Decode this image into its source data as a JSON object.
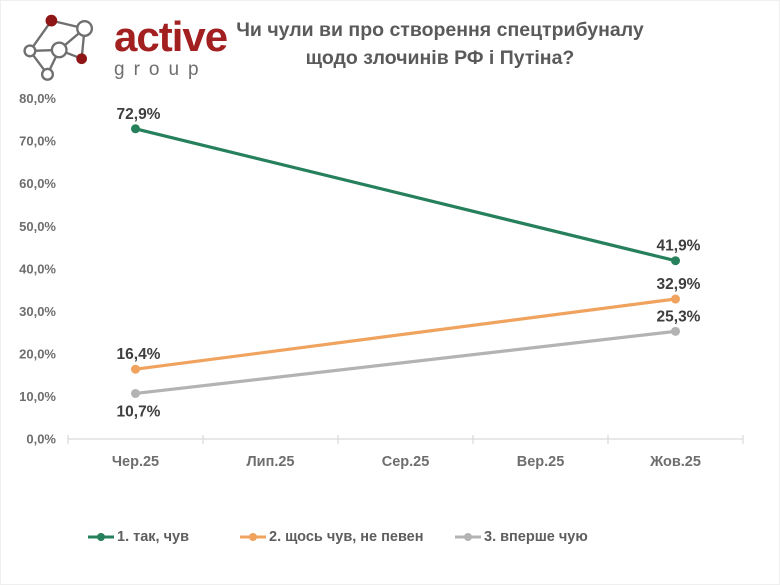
{
  "brand": {
    "primary": "active",
    "secondary": "group",
    "primary_color": "#a32021",
    "node_color": "#8f1616",
    "wire_color": "#6f6f6f"
  },
  "title": {
    "line1": "Чи чули ви про створення спецтрибуналу",
    "line2": "щодо злочинів РФ і Путіна?"
  },
  "chart_data": {
    "type": "line",
    "title": "Чи чули ви про створення спецтрибуналу щодо злочинів РФ і Путіна?",
    "categories": [
      "Чер.25",
      "Лип.25",
      "Сер.25",
      "Вер.25",
      "Жов.25"
    ],
    "y_axis": {
      "tick_values": [
        0,
        10,
        20,
        30,
        40,
        50,
        60,
        70,
        80
      ],
      "tick_labels": [
        "0,0%",
        "10,0%",
        "20,0%",
        "30,0%",
        "40,0%",
        "50,0%",
        "60,0%",
        "70,0%",
        "80,0%"
      ]
    },
    "ylim": [
      0,
      80
    ],
    "grid": false,
    "legend_position": "bottom",
    "axis_color": "#d9d9d9",
    "axis_text_color": "#6e6e6e",
    "data_label_color": "#3e3e3e",
    "series": [
      {
        "name": "1. так, чув",
        "color": "#26805c",
        "values": [
          72.9,
          null,
          null,
          null,
          41.9
        ],
        "point_labels": [
          "72,9%",
          null,
          null,
          null,
          "41,9%"
        ],
        "label_side": [
          "above",
          null,
          null,
          null,
          "above"
        ]
      },
      {
        "name": "2. щось чув, не певен",
        "color": "#f0a35e",
        "values": [
          16.4,
          null,
          null,
          null,
          32.9
        ],
        "point_labels": [
          "16,4%",
          null,
          null,
          null,
          "32,9%"
        ],
        "label_side": [
          "above",
          null,
          null,
          null,
          "above"
        ]
      },
      {
        "name": "3. вперше чую",
        "color": "#b3b3b3",
        "values": [
          10.7,
          null,
          null,
          null,
          25.3
        ],
        "point_labels": [
          "10,7%",
          null,
          null,
          null,
          "25,3%"
        ],
        "label_side": [
          "below",
          null,
          null,
          null,
          "above"
        ]
      }
    ]
  }
}
